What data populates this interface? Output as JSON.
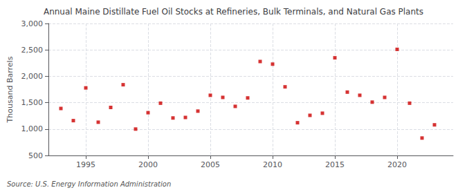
{
  "chart_data": {
    "type": "scatter",
    "title": "Annual Maine Distillate Fuel Oil Stocks at Refineries, Bulk Terminals, and Natural Gas Plants",
    "ylabel": "Thousand Barrels",
    "annotations": [
      "Source: U.S. Energy Information Administration"
    ],
    "x": [
      1993,
      1994,
      1995,
      1996,
      1997,
      1998,
      1999,
      2000,
      2001,
      2002,
      2003,
      2004,
      2005,
      2006,
      2007,
      2008,
      2009,
      2010,
      2011,
      2012,
      2013,
      2014,
      2015,
      2016,
      2017,
      2018,
      2019,
      2020,
      2021,
      2022,
      2023
    ],
    "values": [
      1390,
      1160,
      1780,
      1130,
      1410,
      1840,
      1000,
      1310,
      1490,
      1210,
      1220,
      1340,
      1640,
      1600,
      1430,
      1590,
      2280,
      2230,
      1800,
      1120,
      1260,
      1300,
      2350,
      1700,
      1640,
      1510,
      1600,
      2510,
      1490,
      830,
      1080
    ],
    "color": "#cc0000",
    "marker": "square",
    "xlim": [
      1992,
      2024.5
    ],
    "xticks": [
      1995,
      2000,
      2005,
      2010,
      2015,
      2020
    ],
    "ylim": [
      500,
      3000
    ],
    "yticks": [
      500,
      {
        "value": 1000,
        "label": "1,000"
      },
      {
        "value": 1500,
        "label": "1,500"
      },
      {
        "value": 2000,
        "label": "2,000"
      },
      {
        "value": 2500,
        "label": "2,500"
      },
      {
        "value": 3000,
        "label": "3,000"
      }
    ],
    "grid": true
  }
}
